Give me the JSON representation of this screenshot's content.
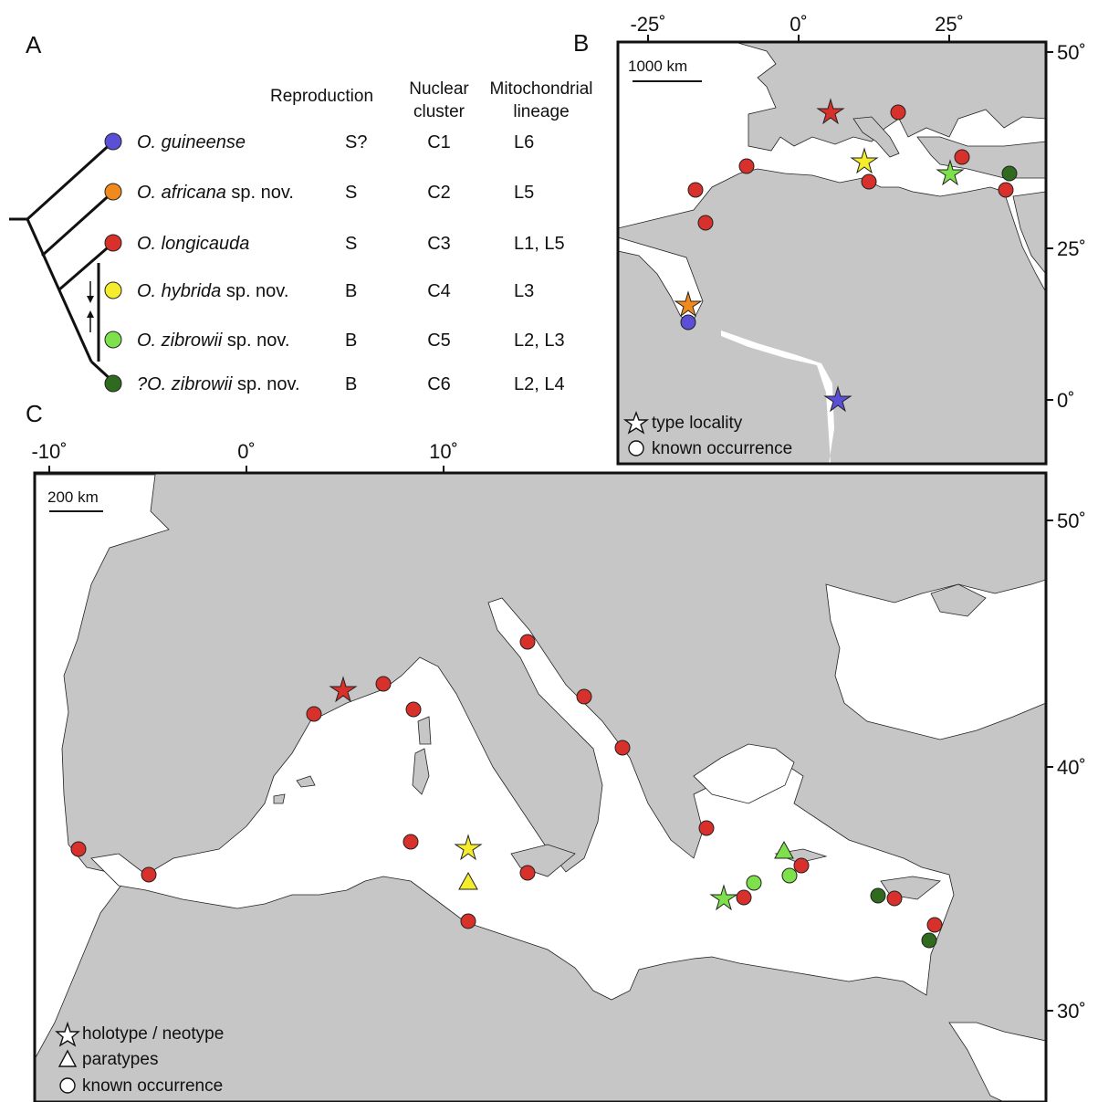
{
  "panels": {
    "a": "A",
    "b": "B",
    "c": "C"
  },
  "headers": {
    "reproduction": "Reproduction",
    "nuclear_1": "Nuclear",
    "nuclear_2": "cluster",
    "mito_1": "Mitochondrial",
    "mito_2": "lineage"
  },
  "taxa": [
    {
      "parts": [
        {
          "t": "O. guineense",
          "i": true
        }
      ],
      "repro": "S?",
      "nuc": "C1",
      "mito": "L6",
      "color": "#5b4fd8"
    },
    {
      "parts": [
        {
          "t": "O. africana",
          "i": true
        },
        {
          "t": " sp. nov.",
          "i": false
        }
      ],
      "repro": "S",
      "nuc": "C2",
      "mito": "L5",
      "color": "#f08a1c"
    },
    {
      "parts": [
        {
          "t": "O. longicauda",
          "i": true
        }
      ],
      "repro": "S",
      "nuc": "C3",
      "mito": "L1, L5",
      "color": "#d8302a"
    },
    {
      "parts": [
        {
          "t": "O. hybrida",
          "i": true
        },
        {
          "t": " sp. nov.",
          "i": false
        }
      ],
      "repro": "B",
      "nuc": "C4",
      "mito": "L3",
      "color": "#f4ec2c"
    },
    {
      "parts": [
        {
          "t": "O. zibrowii",
          "i": true
        },
        {
          "t": " sp. nov.",
          "i": false
        }
      ],
      "repro": "B",
      "nuc": "C5",
      "mito": "L2, L3",
      "color": "#7ee04a"
    },
    {
      "parts": [
        {
          "t": "?O. zibrowii",
          "i": true
        },
        {
          "t": " sp. nov.",
          "i": false
        }
      ],
      "repro": "B",
      "nuc": "C6",
      "mito": "L2, L4",
      "color": "#2f6a1e"
    }
  ],
  "map_b": {
    "x_ticks": [
      "-25˚",
      "0˚",
      "25˚"
    ],
    "y_ticks": [
      "50˚",
      "25˚",
      "0˚"
    ],
    "scale": "1000 km",
    "legend": {
      "type": "type locality",
      "known": "known occurrence"
    }
  },
  "map_c": {
    "x_ticks": [
      "-10˚",
      "0˚",
      "10˚"
    ],
    "y_ticks": [
      "50˚",
      "40˚",
      "30˚"
    ],
    "scale": "200 km",
    "legend": {
      "holo": "holotype / neotype",
      "para": "paratypes",
      "known": "known occurrence"
    }
  },
  "colors": {
    "land": "#c6c6c6",
    "sea": "#ffffff"
  }
}
